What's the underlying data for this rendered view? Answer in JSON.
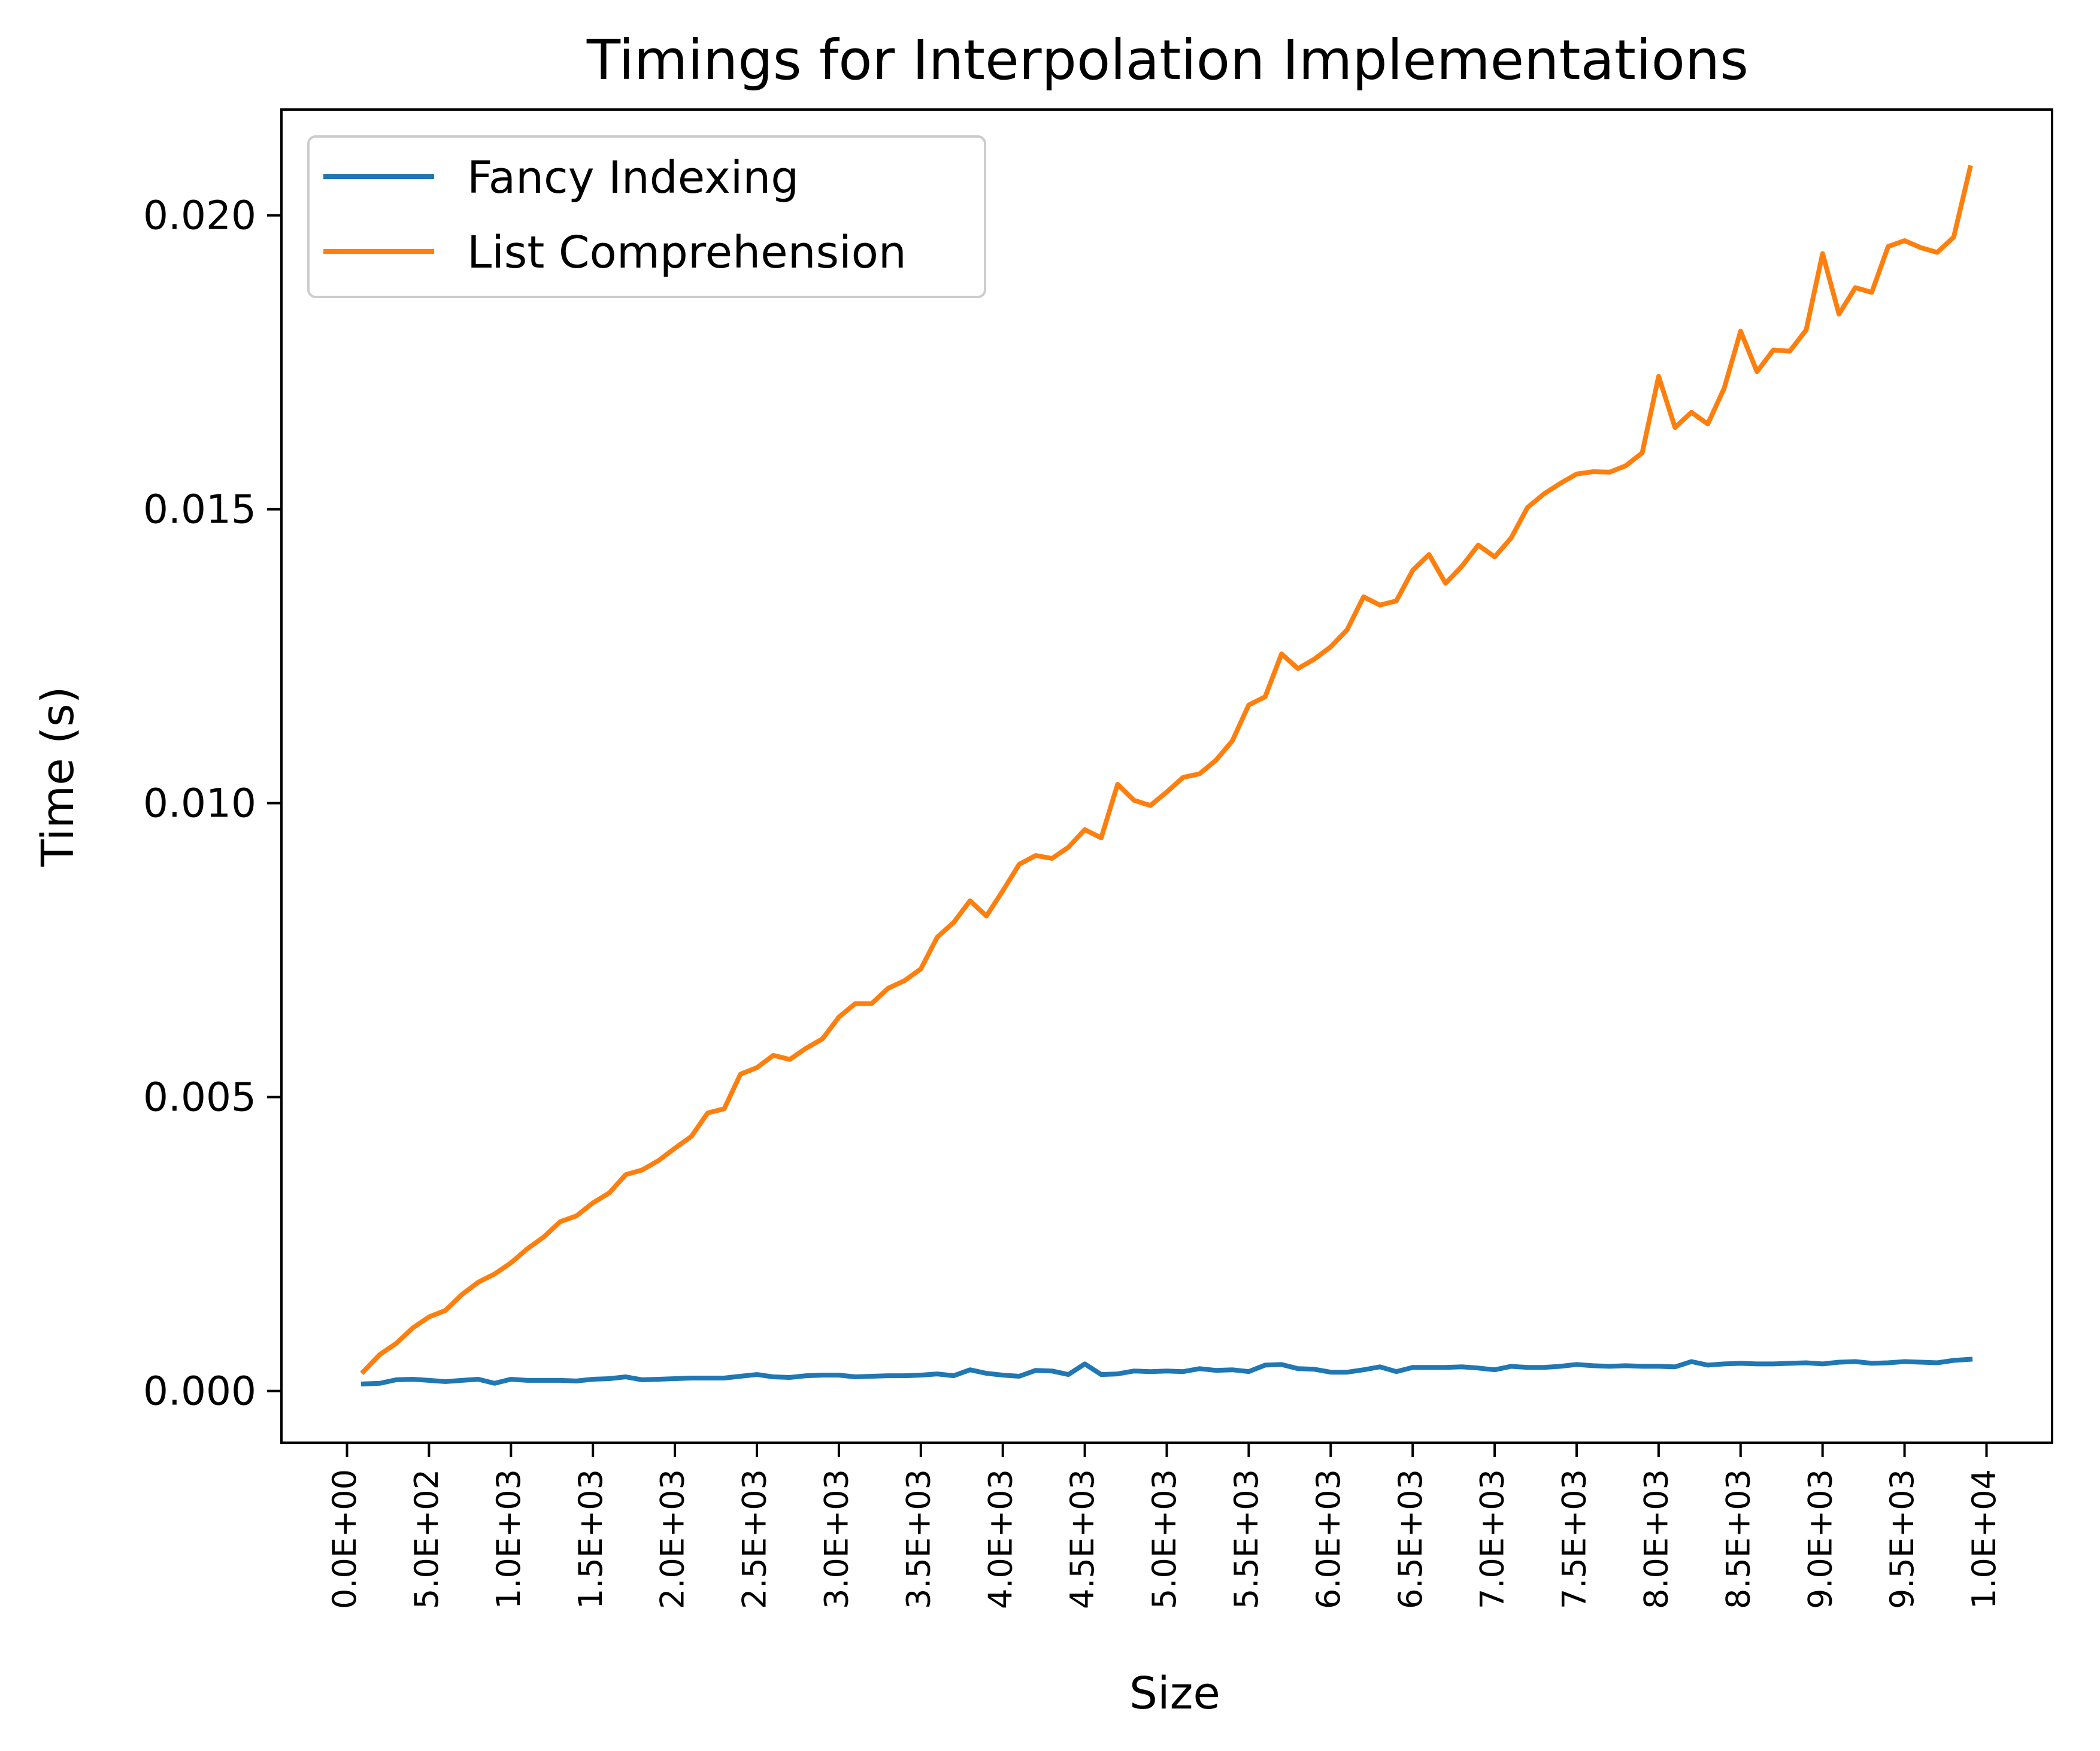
{
  "chart_data": {
    "type": "line",
    "title": "Timings for Interpolation Implementations",
    "xlabel": "Size",
    "ylabel": "Time (s)",
    "xlim": [
      -400,
      10400
    ],
    "ylim": [
      -0.00088,
      0.0218
    ],
    "x_ticks": [
      0,
      500,
      1000,
      1500,
      2000,
      2500,
      3000,
      3500,
      4000,
      4500,
      5000,
      5500,
      6000,
      6500,
      7000,
      7500,
      8000,
      8500,
      9000,
      9500,
      10000
    ],
    "x_tick_labels": [
      "0.0E+00",
      "5.0E+02",
      "1.0E+03",
      "1.5E+03",
      "2.0E+03",
      "2.5E+03",
      "3.0E+03",
      "3.5E+03",
      "4.0E+03",
      "4.5E+03",
      "5.0E+03",
      "5.5E+03",
      "6.0E+03",
      "6.5E+03",
      "7.0E+03",
      "7.5E+03",
      "8.0E+03",
      "8.5E+03",
      "9.0E+03",
      "9.5E+03",
      "1.0E+04"
    ],
    "y_ticks": [
      0.0,
      0.005,
      0.01,
      0.015,
      0.02
    ],
    "y_tick_labels": [
      "0.000",
      "0.005",
      "0.010",
      "0.015",
      "0.020"
    ],
    "grid": false,
    "legend_position": "top-left",
    "x": [
      100,
      200,
      300,
      400,
      500,
      600,
      700,
      800,
      900,
      1000,
      1100,
      1200,
      1300,
      1400,
      1500,
      1600,
      1700,
      1800,
      1900,
      2000,
      2100,
      2200,
      2300,
      2400,
      2500,
      2600,
      2700,
      2800,
      2900,
      3000,
      3100,
      3200,
      3300,
      3400,
      3500,
      3600,
      3700,
      3800,
      3900,
      4000,
      4100,
      4200,
      4300,
      4400,
      4500,
      4600,
      4700,
      4800,
      4900,
      5000,
      5100,
      5200,
      5300,
      5400,
      5500,
      5600,
      5700,
      5800,
      5900,
      6000,
      6100,
      6200,
      6300,
      6400,
      6500,
      6600,
      6700,
      6800,
      6900,
      7000,
      7100,
      7200,
      7300,
      7400,
      7500,
      7600,
      7700,
      7800,
      7900,
      8000,
      8100,
      8200,
      8300,
      8400,
      8500,
      8600,
      8700,
      8800,
      8900,
      9000,
      9100,
      9200,
      9300,
      9400,
      9500,
      9600,
      9700,
      9800,
      9900
    ],
    "series": [
      {
        "name": "Fancy Indexing",
        "color": "#1f77b4",
        "values": [
          0.00012,
          0.00013,
          0.00019,
          0.0002,
          0.00018,
          0.00016,
          0.00018,
          0.0002,
          0.00013,
          0.0002,
          0.00018,
          0.00018,
          0.00018,
          0.00017,
          0.0002,
          0.00021,
          0.00024,
          0.00019,
          0.0002,
          0.00021,
          0.00022,
          0.00022,
          0.00022,
          0.00025,
          0.00028,
          0.00024,
          0.00023,
          0.00026,
          0.00027,
          0.00027,
          0.00024,
          0.00025,
          0.00026,
          0.00026,
          0.00027,
          0.00029,
          0.00026,
          0.00036,
          0.0003,
          0.00027,
          0.00025,
          0.00035,
          0.00034,
          0.00028,
          0.00046,
          0.00028,
          0.00029,
          0.00034,
          0.00033,
          0.00034,
          0.00033,
          0.00038,
          0.00035,
          0.00036,
          0.00033,
          0.00044,
          0.00045,
          0.00038,
          0.00037,
          0.00032,
          0.00032,
          0.00036,
          0.00041,
          0.00033,
          0.0004,
          0.0004,
          0.0004,
          0.00041,
          0.00039,
          0.00036,
          0.00042,
          0.0004,
          0.0004,
          0.00042,
          0.00045,
          0.00043,
          0.00042,
          0.00043,
          0.00042,
          0.00042,
          0.00041,
          0.0005,
          0.00044,
          0.00046,
          0.00047,
          0.00046,
          0.00046,
          0.00047,
          0.00048,
          0.00046,
          0.00049,
          0.0005,
          0.00047,
          0.00048,
          0.0005,
          0.00049,
          0.00048,
          0.00052,
          0.00054
        ]
      },
      {
        "name": "List Comprehension",
        "color": "#ff7f0e",
        "values": [
          0.00033,
          0.00062,
          0.00081,
          0.00107,
          0.00126,
          0.00137,
          0.00164,
          0.00185,
          0.00199,
          0.00218,
          0.00242,
          0.00262,
          0.00288,
          0.00298,
          0.0032,
          0.00337,
          0.00368,
          0.00376,
          0.00392,
          0.00413,
          0.00433,
          0.00473,
          0.0048,
          0.00539,
          0.0055,
          0.00571,
          0.00564,
          0.00583,
          0.00599,
          0.00636,
          0.00659,
          0.00659,
          0.00685,
          0.00698,
          0.00718,
          0.00772,
          0.00797,
          0.00834,
          0.00808,
          0.00851,
          0.00896,
          0.00911,
          0.00906,
          0.00925,
          0.00955,
          0.00941,
          0.01032,
          0.01005,
          0.00996,
          0.01019,
          0.01044,
          0.0105,
          0.01073,
          0.01106,
          0.01167,
          0.01181,
          0.01254,
          0.01229,
          0.01245,
          0.01266,
          0.01295,
          0.01351,
          0.01337,
          0.01344,
          0.01396,
          0.01423,
          0.01374,
          0.01403,
          0.01439,
          0.01419,
          0.01451,
          0.01503,
          0.01526,
          0.01544,
          0.0156,
          0.01564,
          0.01563,
          0.01574,
          0.01596,
          0.01726,
          0.01639,
          0.01665,
          0.01645,
          0.01706,
          0.01803,
          0.01734,
          0.01771,
          0.01769,
          0.01805,
          0.01935,
          0.01832,
          0.01877,
          0.01869,
          0.01947,
          0.01957,
          0.01945,
          0.01937,
          0.01963,
          0.02081
        ]
      }
    ]
  }
}
